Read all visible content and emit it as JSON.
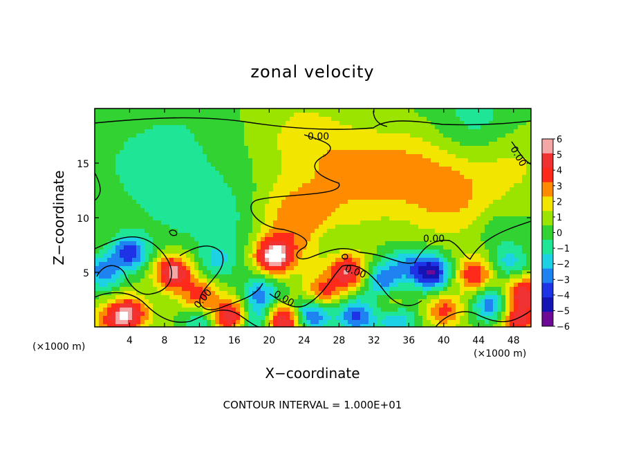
{
  "chart_data": {
    "type": "heatmap",
    "title": "zonal velocity",
    "xlabel": "X−coordinate",
    "ylabel": "Z−coordinate",
    "x_unit_label": "(×1000 m)",
    "xlim": [
      0,
      50
    ],
    "ylim": [
      0,
      20
    ],
    "x_ticks": [
      4,
      8,
      12,
      16,
      20,
      24,
      28,
      32,
      36,
      40,
      44,
      48
    ],
    "y_ticks": [
      5,
      10,
      15
    ],
    "colorbar": {
      "levels": [
        6,
        5,
        4,
        3,
        2,
        1,
        0,
        -1,
        -2,
        -3,
        -4,
        -5,
        -6
      ],
      "labels": [
        "6",
        "5",
        "4",
        "3",
        "2",
        "1",
        "0",
        "−1",
        "−2",
        "−3",
        "−4",
        "−5",
        "−6"
      ],
      "colors": [
        "#f5a6a6",
        "#f03232",
        "#ff2a1a",
        "#ff8c00",
        "#f2e600",
        "#9ae400",
        "#32d232",
        "#1ee696",
        "#1ed2e6",
        "#1e82f0",
        "#1e32e6",
        "#1414b4",
        "#6e0a96"
      ]
    },
    "contour_level": 0,
    "contour_labels": [
      "0.00",
      "0.00",
      "0.00",
      "0.00",
      "0.00",
      "0.00",
      "0.00"
    ],
    "blobs": [
      {
        "x": 20.5,
        "z": 6.5,
        "v": 6
      },
      {
        "x": 9.0,
        "z": 5.0,
        "v": 5.5
      },
      {
        "x": 29.0,
        "z": 5.0,
        "v": 5
      },
      {
        "x": 26.0,
        "z": 3.0,
        "v": 4
      },
      {
        "x": 4.0,
        "z": 1.2,
        "v": 4.5
      },
      {
        "x": 2.0,
        "z": 0.6,
        "v": 3
      },
      {
        "x": 15.5,
        "z": 1.0,
        "v": 5
      },
      {
        "x": 12.0,
        "z": 2.8,
        "v": 3.5
      },
      {
        "x": 21.5,
        "z": 0.5,
        "v": 5.5
      },
      {
        "x": 23.0,
        "z": 9.5,
        "v": 3
      },
      {
        "x": 43.5,
        "z": 4.8,
        "v": 4
      },
      {
        "x": 49.0,
        "z": 3.0,
        "v": 4.5
      },
      {
        "x": 40.0,
        "z": 1.5,
        "v": 3.5
      },
      {
        "x": 34.0,
        "z": 2.0,
        "v": 2.5
      },
      {
        "x": 48.5,
        "z": 0.6,
        "v": 4
      },
      {
        "x": 41.0,
        "z": 12.0,
        "v": 2.2
      },
      {
        "x": 36.0,
        "z": 14.5,
        "v": 1.6
      },
      {
        "x": 30.0,
        "z": 14.0,
        "v": 1.8
      },
      {
        "x": 48.0,
        "z": 15.0,
        "v": 1.5
      },
      {
        "x": 24.0,
        "z": 17.5,
        "v": 1.4
      },
      {
        "x": 38.5,
        "z": 5.0,
        "v": -6
      },
      {
        "x": 4.0,
        "z": 6.8,
        "v": -4.5
      },
      {
        "x": 1.0,
        "z": 5.0,
        "v": -3.5
      },
      {
        "x": 19.0,
        "z": 3.0,
        "v": -3.5
      },
      {
        "x": 25.0,
        "z": 1.3,
        "v": -4.5
      },
      {
        "x": 30.0,
        "z": 1.0,
        "v": -4
      },
      {
        "x": 34.5,
        "z": 0.8,
        "v": -3.5
      },
      {
        "x": 45.5,
        "z": 2.0,
        "v": -4
      },
      {
        "x": 33.0,
        "z": 4.2,
        "v": -3.5
      },
      {
        "x": 12.0,
        "z": 0.6,
        "v": -2.5
      },
      {
        "x": 18.5,
        "z": 0.5,
        "v": -3
      },
      {
        "x": 35.5,
        "z": 5.8,
        "v": -2.5
      },
      {
        "x": 27.0,
        "z": 8.0,
        "v": -1.3
      },
      {
        "x": 10.0,
        "z": 12.0,
        "v": -1.1
      },
      {
        "x": 5.0,
        "z": 15.0,
        "v": -1.0
      },
      {
        "x": 16.0,
        "z": 9.5,
        "v": -1.2
      },
      {
        "x": 46.0,
        "z": 9.0,
        "v": -1.0
      },
      {
        "x": 10.0,
        "z": 18.5,
        "v": -0.7
      },
      {
        "x": 44.0,
        "z": 19.0,
        "v": -1.5
      },
      {
        "x": 14.0,
        "z": 6.0,
        "v": -2.0
      },
      {
        "x": 47.5,
        "z": 6.0,
        "v": -2.5
      }
    ]
  },
  "footer": {
    "contour_interval": "CONTOUR INTERVAL = 1.000E+01"
  }
}
